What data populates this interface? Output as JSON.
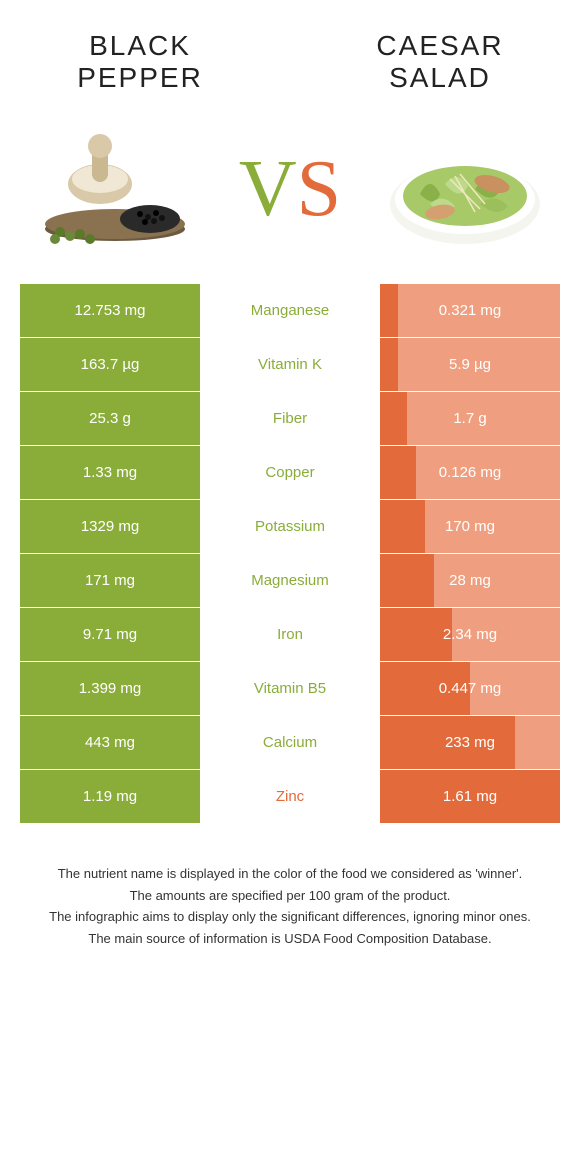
{
  "colors": {
    "green": "#8aad3a",
    "orange": "#e36a3a",
    "left_full": "#8aad3a",
    "left_light": "#b7cf7c",
    "right_full": "#e36a3a",
    "right_light": "#ef9f7f"
  },
  "header": {
    "left_title": "BLACK PEPPER",
    "right_title": "CAESAR SALAD",
    "vs_v": "V",
    "vs_s": "S"
  },
  "rows": [
    {
      "nutrient": "Manganese",
      "left": "12.753 mg",
      "right": "0.321 mg",
      "winner": "left",
      "left_bar": 1.0,
      "right_bar": 0.1
    },
    {
      "nutrient": "Vitamin K",
      "left": "163.7 µg",
      "right": "5.9 µg",
      "winner": "left",
      "left_bar": 1.0,
      "right_bar": 0.1
    },
    {
      "nutrient": "Fiber",
      "left": "25.3 g",
      "right": "1.7 g",
      "winner": "left",
      "left_bar": 1.0,
      "right_bar": 0.15
    },
    {
      "nutrient": "Copper",
      "left": "1.33 mg",
      "right": "0.126 mg",
      "winner": "left",
      "left_bar": 1.0,
      "right_bar": 0.2
    },
    {
      "nutrient": "Potassium",
      "left": "1329 mg",
      "right": "170 mg",
      "winner": "left",
      "left_bar": 1.0,
      "right_bar": 0.25
    },
    {
      "nutrient": "Magnesium",
      "left": "171 mg",
      "right": "28 mg",
      "winner": "left",
      "left_bar": 1.0,
      "right_bar": 0.3
    },
    {
      "nutrient": "Iron",
      "left": "9.71 mg",
      "right": "2.34 mg",
      "winner": "left",
      "left_bar": 1.0,
      "right_bar": 0.4
    },
    {
      "nutrient": "Vitamin B5",
      "left": "1.399 mg",
      "right": "0.447 mg",
      "winner": "left",
      "left_bar": 1.0,
      "right_bar": 0.5
    },
    {
      "nutrient": "Calcium",
      "left": "443 mg",
      "right": "233 mg",
      "winner": "left",
      "left_bar": 1.0,
      "right_bar": 0.75
    },
    {
      "nutrient": "Zinc",
      "left": "1.19 mg",
      "right": "1.61 mg",
      "winner": "right",
      "left_bar": 1.0,
      "right_bar": 1.0
    }
  ],
  "footer": {
    "line1": "The nutrient name is displayed in the color of the food we considered as 'winner'.",
    "line2": "The amounts are specified per 100 gram of the product.",
    "line3": "The infographic aims to display only the significant differences, ignoring minor ones.",
    "line4": "The main source of information is USDA Food Composition Database."
  }
}
